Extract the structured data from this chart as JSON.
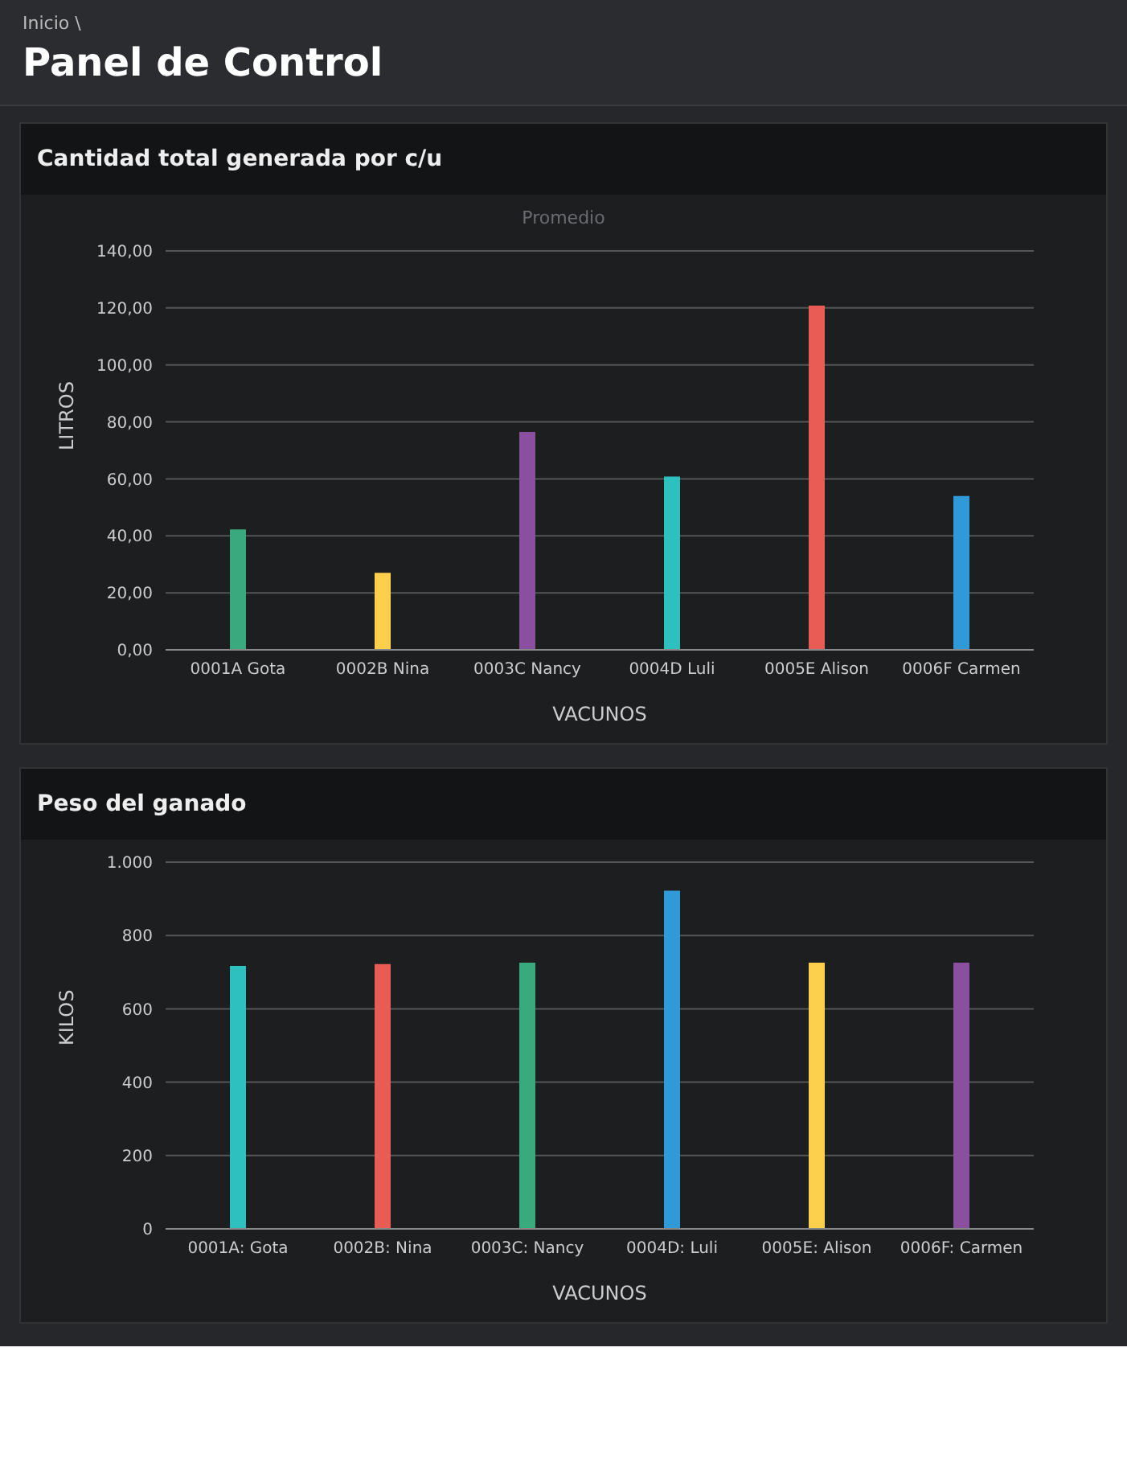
{
  "chart_data": [
    {
      "type": "bar",
      "title": "Cantidad total generada por c/u",
      "subtitle": "Promedio",
      "annotations": [
        "Inicio \\",
        "Panel de Control"
      ],
      "xlabel": "VACUNOS",
      "ylabel": "LITROS",
      "categories": [
        "0001A Gota",
        "0002B Nina",
        "0003C Nancy",
        "0004D Luli",
        "0005E Alison",
        "0006F Carmen"
      ],
      "values": [
        42.3,
        27,
        76.5,
        60.8,
        120.8,
        54
      ],
      "colors": [
        "#3aaa7e",
        "#fccf4d",
        "#8a4f9e",
        "#2ebfbf",
        "#e85c55",
        "#309ad8"
      ],
      "ylim": [
        0,
        140
      ],
      "yticks": [
        {
          "value": 0,
          "label": "0,00"
        },
        {
          "value": 20,
          "label": "20,00"
        },
        {
          "value": 40,
          "label": "40,00"
        },
        {
          "value": 60,
          "label": "60,00"
        },
        {
          "value": 80,
          "label": "80,00"
        },
        {
          "value": 100,
          "label": "100,00"
        },
        {
          "value": 120,
          "label": "120,00"
        },
        {
          "value": 140,
          "label": "140,00"
        }
      ],
      "grid": "y"
    },
    {
      "type": "bar",
      "title": "Peso del ganado",
      "xlabel": "VACUNOS",
      "ylabel": "KILOS",
      "categories": [
        "0001A: Gota",
        "0002B: Nina",
        "0003C: Nancy",
        "0004D: Luli",
        "0005E: Alison",
        "0006F: Carmen"
      ],
      "values": [
        717,
        722,
        726,
        922,
        726,
        726
      ],
      "colors": [
        "#2ebfbf",
        "#e85c55",
        "#3aaa7e",
        "#309ad8",
        "#fccf4d",
        "#8a4f9e"
      ],
      "ylim": [
        0,
        1000
      ],
      "yticks": [
        0,
        200,
        400,
        600,
        800,
        {
          "value": 1000,
          "label": "1.000"
        }
      ],
      "grid": "y"
    }
  ]
}
